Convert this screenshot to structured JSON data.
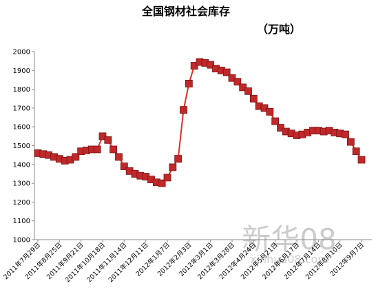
{
  "chart_data": {
    "type": "line",
    "title": "全国钢材社会库存",
    "subtitle": "（万吨）",
    "watermark": "新华08",
    "watermark_url": "xinhua08.com",
    "categories": [
      "2011年7月29日",
      null,
      null,
      null,
      "2011年8月25日",
      null,
      null,
      null,
      "2011年9月21日",
      null,
      null,
      null,
      "2011年10月18日",
      null,
      null,
      null,
      "2011年11月14日",
      null,
      null,
      null,
      "2011年12月11日",
      null,
      null,
      null,
      "2012年1月7日",
      null,
      null,
      null,
      "2012年2月3日",
      null,
      null,
      null,
      "2012年3月1日",
      null,
      null,
      null,
      "2012年3月28日",
      null,
      null,
      null,
      "2012年4月24日",
      null,
      null,
      null,
      "2012年5月21日",
      null,
      null,
      null,
      "2012年6月17日",
      null,
      null,
      null,
      "2012年7月14日",
      null,
      null,
      null,
      "2012年8月10日",
      null,
      null,
      null,
      "2012年9月7日"
    ],
    "series": [
      {
        "name": "全国钢材社会库存",
        "color": "#e0301e",
        "marker_color": "#c0282a",
        "values": [
          1460,
          1455,
          1450,
          1440,
          1430,
          1420,
          1425,
          1440,
          1470,
          1475,
          1480,
          1480,
          1550,
          1530,
          1480,
          1440,
          1390,
          1365,
          1350,
          1340,
          1335,
          1320,
          1305,
          1300,
          1330,
          1385,
          1430,
          1690,
          1830,
          1925,
          1945,
          1940,
          1930,
          1910,
          1900,
          1890,
          1860,
          1840,
          1810,
          1790,
          1750,
          1710,
          1700,
          1680,
          1630,
          1595,
          1575,
          1565,
          1555,
          1560,
          1570,
          1580,
          1580,
          1575,
          1580,
          1570,
          1565,
          1560,
          1520,
          1470,
          1425
        ]
      }
    ],
    "ylim": [
      1000,
      2000
    ],
    "yticks": [
      1000,
      1100,
      1200,
      1300,
      1400,
      1500,
      1600,
      1700,
      1800,
      1900,
      2000
    ],
    "grid": false
  }
}
